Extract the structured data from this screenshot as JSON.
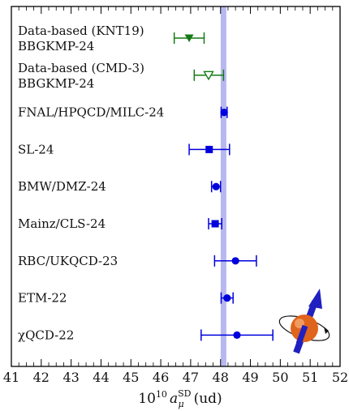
{
  "chart_data": {
    "type": "scatter",
    "orientation": "horizontal-forest-plot",
    "xlabel": {
      "prefix": "10",
      "exp": "10",
      "sym": "a",
      "sup": "SD",
      "sub": "μ",
      "suffix": "(ud)"
    },
    "xlim": [
      41,
      52
    ],
    "xticks": [
      41,
      42,
      43,
      44,
      45,
      46,
      47,
      48,
      49,
      50,
      51,
      52
    ],
    "band": {
      "center": 48.1,
      "color": "#b8b8f0"
    },
    "legend": "none",
    "grid": false,
    "rows": [
      {
        "label": [
          "Data-based (KNT19)",
          "BBGKMP-24"
        ],
        "value": 46.95,
        "lo": 46.45,
        "hi": 47.45,
        "marker": "triangle-down-filled",
        "color": "#157a15"
      },
      {
        "label": [
          "Data-based (CMD-3)",
          "BBGKMP-24"
        ],
        "value": 47.6,
        "lo": 47.12,
        "hi": 48.1,
        "marker": "triangle-down-open",
        "color": "#157a15"
      },
      {
        "label": [
          "FNAL/HPQCD/MILC-24"
        ],
        "value": 48.12,
        "lo": 48.02,
        "hi": 48.22,
        "marker": "circle",
        "color": "#0000dd"
      },
      {
        "label": [
          "SL-24"
        ],
        "value": 47.62,
        "lo": 46.95,
        "hi": 48.3,
        "marker": "square",
        "color": "#0000dd"
      },
      {
        "label": [
          "BMW/DMZ-24"
        ],
        "value": 47.85,
        "lo": 47.7,
        "hi": 48.0,
        "marker": "circle",
        "color": "#0000dd"
      },
      {
        "label": [
          "Mainz/CLS-24"
        ],
        "value": 47.82,
        "lo": 47.6,
        "hi": 48.04,
        "marker": "square",
        "color": "#0000dd"
      },
      {
        "label": [
          "RBC/UKQCD-23"
        ],
        "value": 48.5,
        "lo": 47.8,
        "hi": 49.2,
        "marker": "circle",
        "color": "#0000dd"
      },
      {
        "label": [
          "ETM-22"
        ],
        "value": 48.22,
        "lo": 48.02,
        "hi": 48.42,
        "marker": "circle",
        "color": "#0000dd"
      },
      {
        "label": [
          "χQCD-22"
        ],
        "value": 48.55,
        "lo": 47.35,
        "hi": 49.75,
        "marker": "circle",
        "color": "#0000dd"
      }
    ]
  },
  "colors": {
    "axis": "#000000",
    "band": "#b8b8f0",
    "muon_ball": "#e0641c",
    "spin_arrow": "#2020c0"
  }
}
